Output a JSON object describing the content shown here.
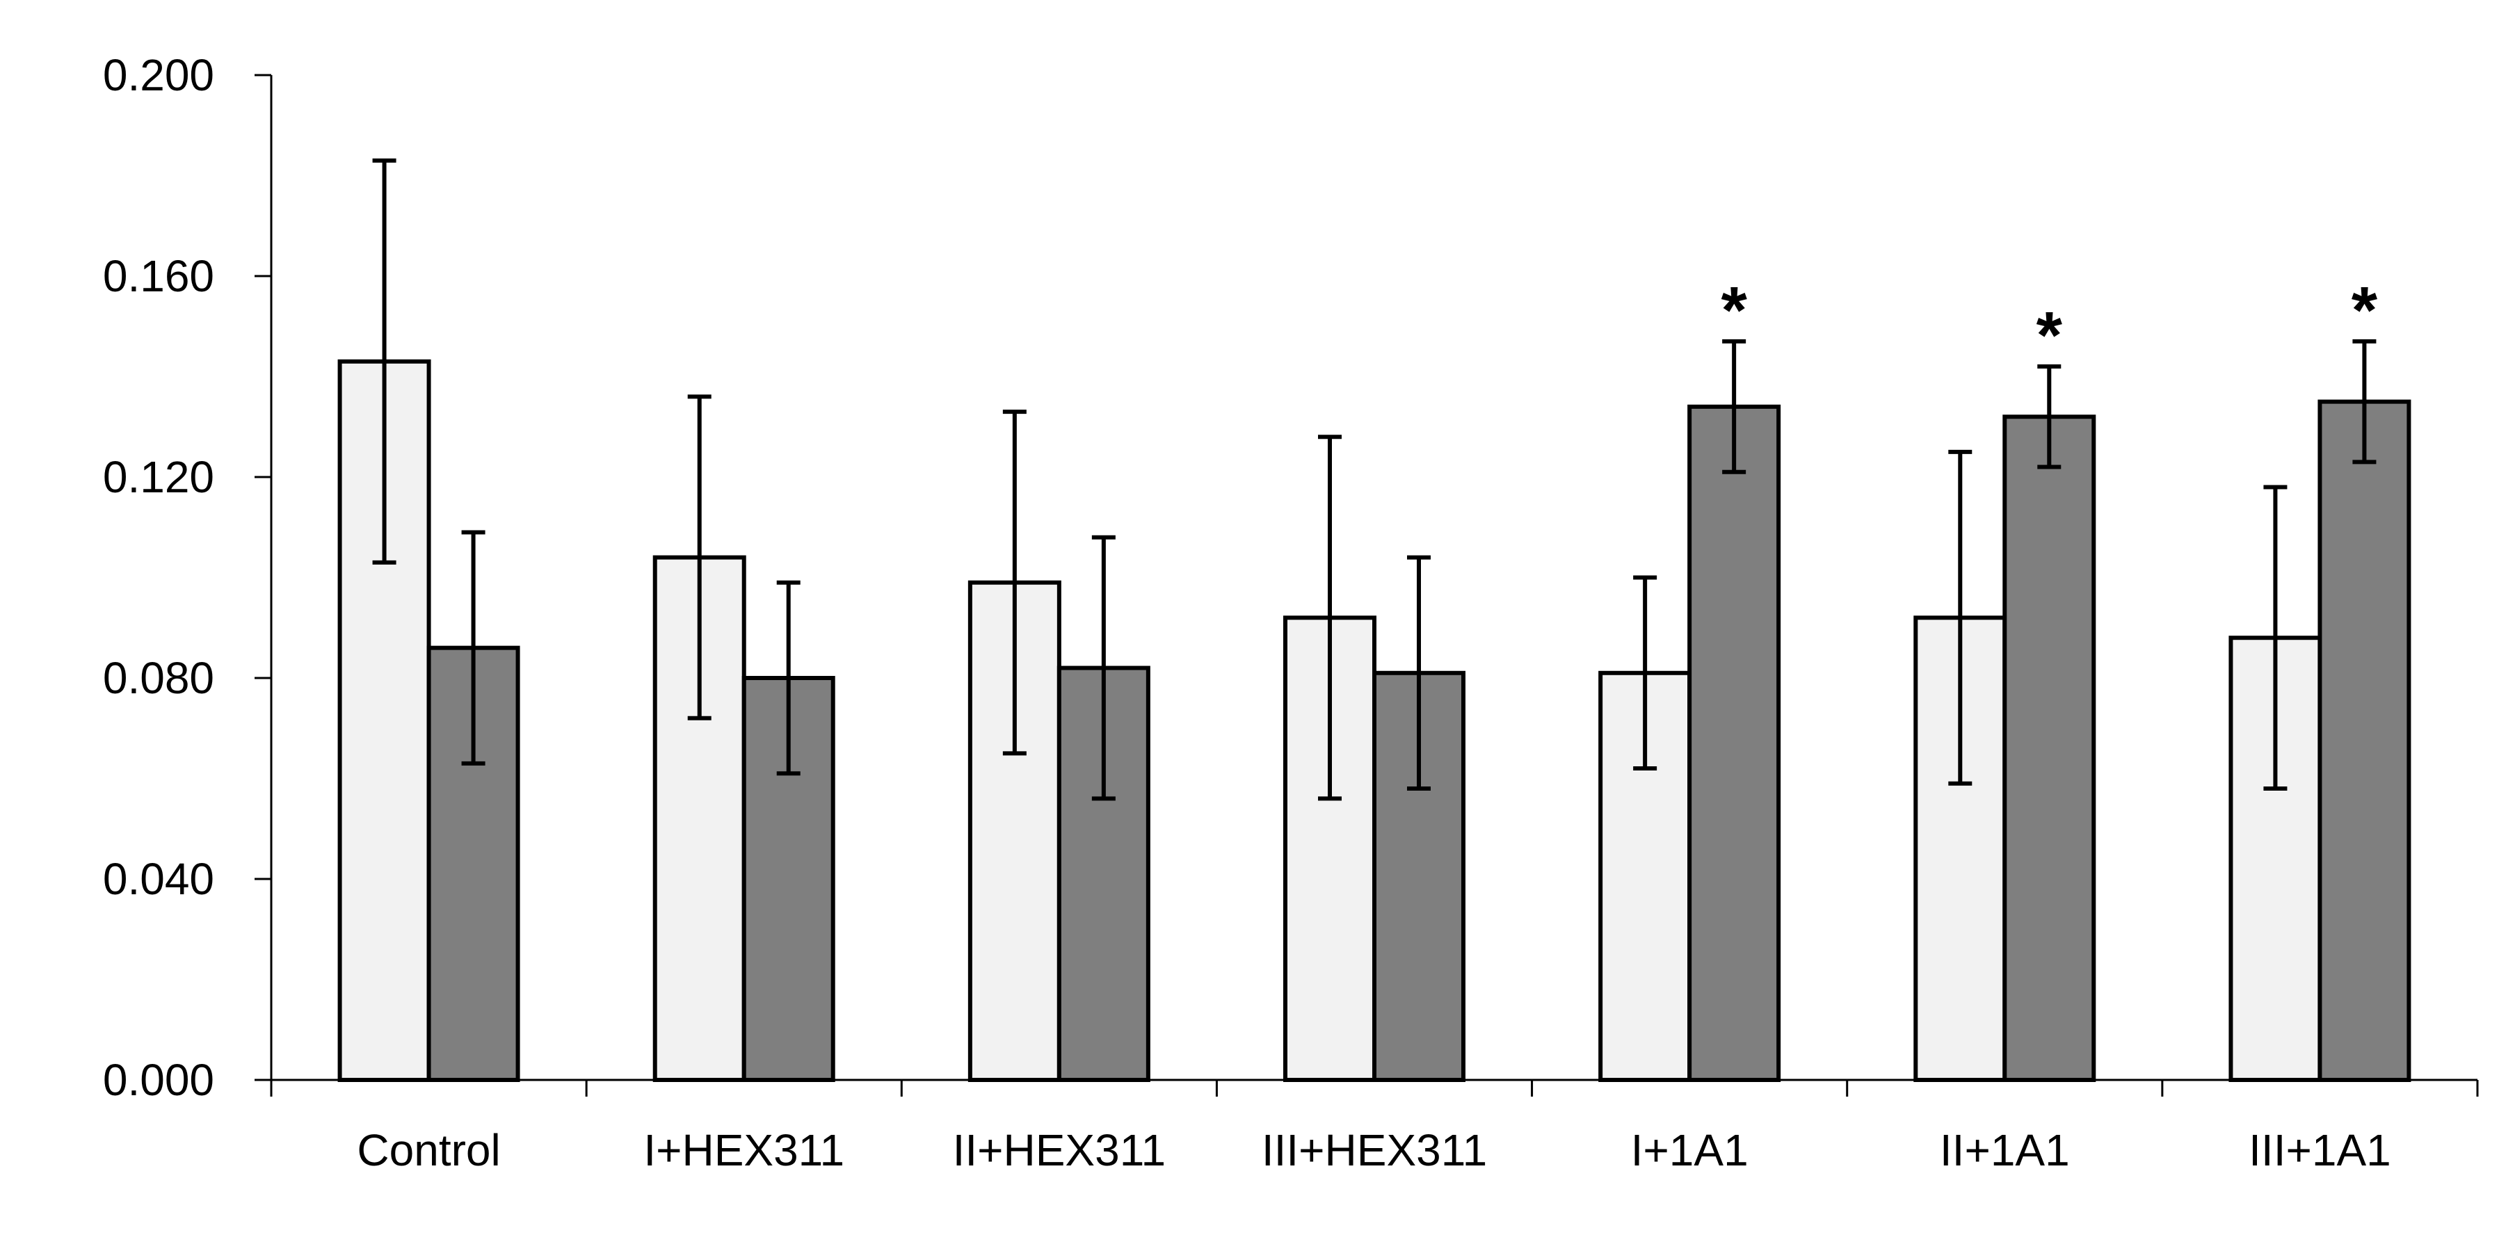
{
  "chart_data": {
    "type": "bar",
    "categories": [
      "Control",
      "I+HEX311",
      "II+HEX311",
      "III+HEX311",
      "I+1A1",
      "II+1A1",
      "III+1A1"
    ],
    "series": [
      {
        "color": "#f2f2f2",
        "values": [
          0.143,
          0.104,
          0.099,
          0.092,
          0.081,
          0.092,
          0.088
        ],
        "error_lower": [
          0.103,
          0.072,
          0.065,
          0.056,
          0.062,
          0.059,
          0.058
        ],
        "error_upper": [
          0.183,
          0.136,
          0.133,
          0.128,
          0.1,
          0.125,
          0.118
        ]
      },
      {
        "color": "#7f7f7f",
        "values": [
          0.086,
          0.08,
          0.082,
          0.081,
          0.134,
          0.132,
          0.135
        ],
        "error_lower": [
          0.063,
          0.061,
          0.056,
          0.058,
          0.121,
          0.122,
          0.123
        ],
        "error_upper": [
          0.109,
          0.099,
          0.108,
          0.104,
          0.147,
          0.142,
          0.147
        ]
      }
    ],
    "annotations": [
      {
        "category": "I+1A1",
        "series": 1,
        "text": "*"
      },
      {
        "category": "II+1A1",
        "series": 1,
        "text": "*"
      },
      {
        "category": "III+1A1",
        "series": 1,
        "text": "*"
      }
    ],
    "ylim": [
      0,
      0.2
    ],
    "yticks": [
      "0.000",
      "0.040",
      "0.080",
      "0.120",
      "0.160",
      "0.200"
    ],
    "ytick_values": [
      0,
      0.04,
      0.08,
      0.12,
      0.16,
      0.2
    ],
    "title": "",
    "xlabel": "",
    "ylabel": "",
    "grid": false,
    "legend": "none"
  }
}
